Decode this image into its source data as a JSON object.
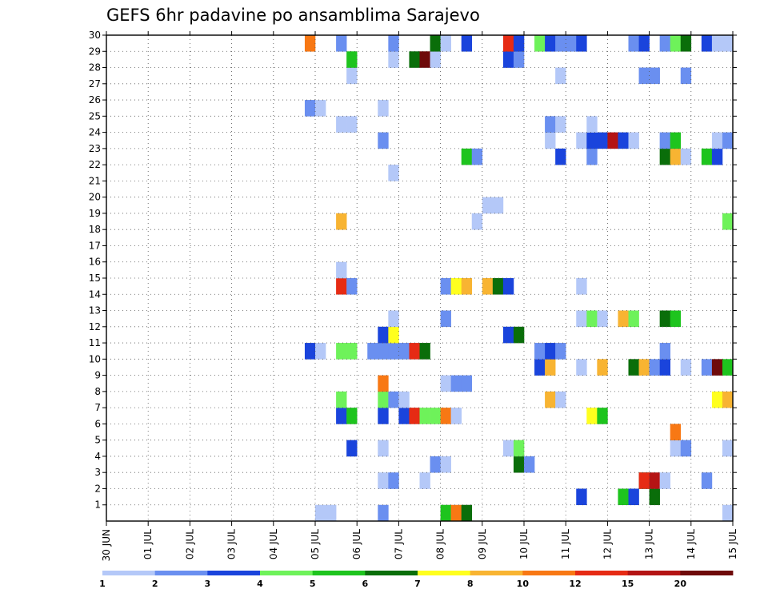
{
  "chart_data": {
    "type": "heatmap",
    "title": "GEFS 6hr padavine po ansamblima Sarajevo",
    "xlabel": "",
    "ylabel": "",
    "x_tick_labels": [
      "30 JUN",
      "01 JUL",
      "02 JUL",
      "03 JUL",
      "04 JUL",
      "05 JUL",
      "06 JUL",
      "07 JUL",
      "08 JUL",
      "09 JUL",
      "10 JUL",
      "11 JUL",
      "12 JUL",
      "13 JUL",
      "14 JUL",
      "15 JUL"
    ],
    "y_tick_labels": [
      "1",
      "2",
      "3",
      "4",
      "5",
      "6",
      "7",
      "8",
      "9",
      "10",
      "11",
      "12",
      "13",
      "14",
      "15",
      "16",
      "17",
      "18",
      "19",
      "20",
      "21",
      "22",
      "23",
      "24",
      "25",
      "26",
      "27",
      "28",
      "29",
      "30"
    ],
    "x_range_days": [
      0,
      15
    ],
    "y_range_members": [
      0,
      30
    ],
    "grid": true,
    "colorbar": {
      "position": "bottom",
      "labels": [
        "1",
        "2",
        "3",
        "4",
        "5",
        "6",
        "7",
        "8",
        "10",
        "12",
        "15",
        "20"
      ],
      "colors": [
        "#b4c8f8",
        "#6a8ff0",
        "#1a44dc",
        "#6ef25a",
        "#1ec41e",
        "#0a6e0a",
        "#ffff1e",
        "#f8b432",
        "#f87814",
        "#e62b14",
        "#b41414",
        "#6e0a0a"
      ]
    },
    "cell_width_days": 0.25,
    "cells": [
      [
        5.0,
        0,
        0
      ],
      [
        5.25,
        0,
        0
      ],
      [
        6.5,
        1,
        0
      ],
      [
        8.0,
        4,
        0
      ],
      [
        8.25,
        8,
        0
      ],
      [
        8.5,
        5,
        0
      ],
      [
        14.75,
        0,
        0
      ],
      [
        11.25,
        2,
        1
      ],
      [
        12.25,
        4,
        1
      ],
      [
        12.5,
        2,
        1
      ],
      [
        12.75,
        5,
        2
      ],
      [
        13.0,
        5,
        1
      ],
      [
        6.5,
        0,
        2
      ],
      [
        6.75,
        1,
        2
      ],
      [
        7.5,
        0,
        2
      ],
      [
        12.75,
        9,
        2
      ],
      [
        13.0,
        10,
        2
      ],
      [
        13.25,
        0,
        2
      ],
      [
        14.25,
        1,
        2
      ],
      [
        7.75,
        1,
        3
      ],
      [
        8.0,
        0,
        3
      ],
      [
        9.75,
        5,
        3
      ],
      [
        10.0,
        1,
        3
      ],
      [
        5.75,
        2,
        4
      ],
      [
        6.5,
        0,
        4
      ],
      [
        9.5,
        0,
        4
      ],
      [
        9.75,
        3,
        4
      ],
      [
        13.5,
        0,
        4
      ],
      [
        13.75,
        1,
        4
      ],
      [
        14.75,
        0,
        4
      ],
      [
        15.0,
        1,
        4
      ],
      [
        13.5,
        8,
        5
      ],
      [
        5.5,
        2,
        6
      ],
      [
        5.75,
        4,
        6
      ],
      [
        6.5,
        2,
        6
      ],
      [
        7.0,
        2,
        6
      ],
      [
        7.25,
        9,
        6
      ],
      [
        7.5,
        3,
        6
      ],
      [
        7.75,
        3,
        6
      ],
      [
        8.0,
        8,
        6
      ],
      [
        8.25,
        0,
        6
      ],
      [
        11.5,
        6,
        6
      ],
      [
        11.75,
        4,
        6
      ],
      [
        5.5,
        3,
        7
      ],
      [
        6.5,
        3,
        7
      ],
      [
        6.75,
        1,
        7
      ],
      [
        7.0,
        0,
        7
      ],
      [
        10.5,
        7,
        7
      ],
      [
        10.75,
        0,
        7
      ],
      [
        14.5,
        6,
        7
      ],
      [
        14.75,
        7,
        7
      ],
      [
        15.0,
        0,
        7
      ],
      [
        6.5,
        8,
        8
      ],
      [
        8.0,
        0,
        8
      ],
      [
        8.25,
        1,
        8
      ],
      [
        8.5,
        1,
        8
      ],
      [
        10.25,
        2,
        9
      ],
      [
        10.5,
        7,
        9
      ],
      [
        11.25,
        0,
        9
      ],
      [
        11.75,
        7,
        9
      ],
      [
        12.5,
        5,
        9
      ],
      [
        12.75,
        7,
        9
      ],
      [
        13.0,
        1,
        9
      ],
      [
        13.25,
        2,
        9
      ],
      [
        13.75,
        0,
        9
      ],
      [
        14.25,
        1,
        9
      ],
      [
        14.5,
        11,
        9
      ],
      [
        14.75,
        4,
        9
      ],
      [
        4.75,
        2,
        10
      ],
      [
        5.0,
        0,
        10
      ],
      [
        5.5,
        3,
        10
      ],
      [
        5.75,
        3,
        10
      ],
      [
        6.25,
        1,
        10
      ],
      [
        6.5,
        1,
        10
      ],
      [
        6.75,
        1,
        10
      ],
      [
        7.0,
        1,
        10
      ],
      [
        7.25,
        9,
        10
      ],
      [
        7.5,
        5,
        10
      ],
      [
        10.25,
        1,
        10
      ],
      [
        10.5,
        2,
        10
      ],
      [
        10.75,
        1,
        10
      ],
      [
        13.25,
        1,
        10
      ],
      [
        6.5,
        2,
        11
      ],
      [
        6.75,
        6,
        11
      ],
      [
        9.5,
        2,
        11
      ],
      [
        9.75,
        5,
        11
      ],
      [
        6.75,
        0,
        12
      ],
      [
        8.0,
        1,
        12
      ],
      [
        11.25,
        0,
        12
      ],
      [
        11.5,
        3,
        12
      ],
      [
        11.75,
        0,
        12
      ],
      [
        12.25,
        7,
        12
      ],
      [
        12.5,
        3,
        12
      ],
      [
        13.25,
        5,
        12
      ],
      [
        13.5,
        4,
        12
      ],
      [
        5.5,
        9,
        14
      ],
      [
        5.75,
        1,
        14
      ],
      [
        8.0,
        1,
        14
      ],
      [
        8.25,
        6,
        14
      ],
      [
        8.5,
        7,
        14
      ],
      [
        9.0,
        7,
        14
      ],
      [
        9.25,
        5,
        14
      ],
      [
        9.5,
        2,
        14
      ],
      [
        11.25,
        0,
        14
      ],
      [
        5.5,
        0,
        15
      ],
      [
        5.5,
        7,
        18
      ],
      [
        8.75,
        0,
        18
      ],
      [
        14.75,
        3,
        18
      ],
      [
        15.0,
        2,
        18
      ],
      [
        9.0,
        0,
        19
      ],
      [
        9.25,
        0,
        19
      ],
      [
        6.75,
        0,
        21
      ],
      [
        8.5,
        4,
        22
      ],
      [
        8.75,
        1,
        22
      ],
      [
        10.75,
        2,
        22
      ],
      [
        11.5,
        1,
        22
      ],
      [
        13.25,
        5,
        22
      ],
      [
        13.5,
        7,
        22
      ],
      [
        13.75,
        0,
        22
      ],
      [
        14.25,
        4,
        22
      ],
      [
        14.5,
        2,
        22
      ],
      [
        6.5,
        1,
        23
      ],
      [
        10.5,
        0,
        23
      ],
      [
        11.25,
        0,
        23
      ],
      [
        11.5,
        2,
        23
      ],
      [
        11.75,
        2,
        23
      ],
      [
        12.0,
        10,
        23
      ],
      [
        12.25,
        2,
        23
      ],
      [
        12.5,
        0,
        23
      ],
      [
        13.25,
        1,
        23
      ],
      [
        13.5,
        4,
        23
      ],
      [
        14.5,
        0,
        23
      ],
      [
        14.75,
        1,
        23
      ],
      [
        5.5,
        0,
        24
      ],
      [
        5.75,
        0,
        24
      ],
      [
        10.5,
        1,
        24
      ],
      [
        10.75,
        0,
        24
      ],
      [
        11.5,
        0,
        24
      ],
      [
        4.75,
        1,
        25
      ],
      [
        5.0,
        0,
        25
      ],
      [
        6.5,
        0,
        25
      ],
      [
        5.75,
        0,
        27
      ],
      [
        10.75,
        0,
        27
      ],
      [
        12.75,
        1,
        27
      ],
      [
        13.0,
        1,
        27
      ],
      [
        13.75,
        1,
        27
      ],
      [
        5.75,
        4,
        28
      ],
      [
        6.75,
        0,
        28
      ],
      [
        7.25,
        5,
        28
      ],
      [
        7.5,
        11,
        28
      ],
      [
        7.75,
        0,
        28
      ],
      [
        9.5,
        2,
        28
      ],
      [
        9.75,
        1,
        28
      ],
      [
        4.75,
        8,
        29
      ],
      [
        5.5,
        1,
        29
      ],
      [
        6.75,
        1,
        29
      ],
      [
        7.75,
        5,
        29
      ],
      [
        8.0,
        0,
        29
      ],
      [
        8.5,
        2,
        29
      ],
      [
        9.5,
        9,
        29
      ],
      [
        9.75,
        2,
        29
      ],
      [
        10.25,
        3,
        29
      ],
      [
        10.5,
        2,
        29
      ],
      [
        10.75,
        1,
        29
      ],
      [
        11.0,
        1,
        29
      ],
      [
        11.25,
        2,
        29
      ],
      [
        12.5,
        1,
        29
      ],
      [
        12.75,
        2,
        29
      ],
      [
        13.25,
        1,
        29
      ],
      [
        13.5,
        3,
        29
      ],
      [
        13.75,
        5,
        29
      ],
      [
        14.25,
        2,
        29
      ],
      [
        14.5,
        0,
        29
      ],
      [
        14.75,
        0,
        29
      ]
    ]
  }
}
